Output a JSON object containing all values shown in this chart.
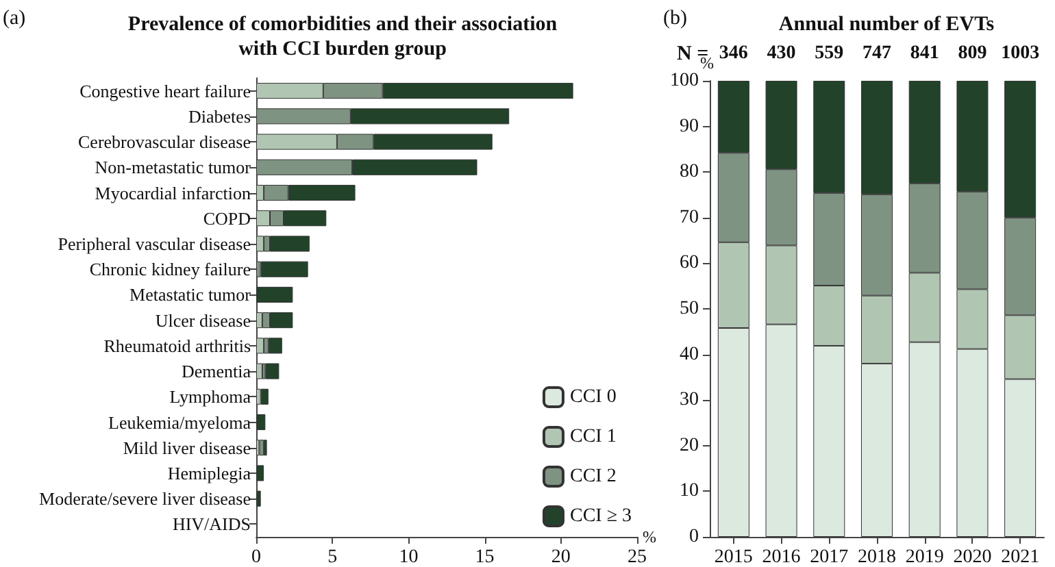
{
  "chart_data": [
    {
      "type": "bar",
      "orientation": "horizontal",
      "stacked": true,
      "title": "Prevalence of comorbidities and their association\nwith CCI burden group",
      "xlabel": "%",
      "annotations": [
        "(a)"
      ],
      "categories": [
        "Congestive heart failure",
        "Diabetes",
        "Cerebrovascular disease",
        "Non-metastatic tumor",
        "Myocardial infarction",
        "COPD",
        "Peripheral vascular disease",
        "Chronic kidney failure",
        "Metastatic tumor",
        "Ulcer disease",
        "Rheumatoid arthritis",
        "Dementia",
        "Lymphoma",
        "Leukemia/myeloma",
        "Mild liver disease",
        "Hemiplegia",
        "Moderate/severe liver disease",
        "HIV/AIDS"
      ],
      "series": [
        {
          "name": "CCI 0",
          "color": "#dce9df",
          "values": [
            0,
            0,
            0,
            0,
            0,
            0,
            0,
            0,
            0,
            0,
            0,
            0,
            0,
            0,
            0,
            0,
            0,
            0
          ]
        },
        {
          "name": "CCI 1",
          "color": "#b1c5b3",
          "values": [
            4.4,
            0,
            5.3,
            0,
            0.5,
            0.9,
            0.5,
            0,
            0,
            0.4,
            0.5,
            0.4,
            0.3,
            null,
            0.2,
            0,
            0,
            0
          ]
        },
        {
          "name": "CCI 2",
          "color": "#7f9383",
          "values": [
            3.9,
            6.2,
            2.4,
            6.3,
            1.6,
            0.9,
            0.4,
            0.3,
            0,
            0.5,
            0.3,
            0.2,
            0,
            0,
            0.3,
            0,
            0,
            0
          ]
        },
        {
          "name": "CCI ≥ 3",
          "color": "#22432a",
          "values": [
            12.5,
            10.4,
            7.8,
            8.2,
            4.4,
            2.8,
            2.6,
            3.1,
            2.4,
            1.5,
            0.9,
            0.9,
            0.5,
            0.6,
            0.2,
            0.5,
            0.3,
            null
          ]
        }
      ],
      "xlim": [
        0,
        25
      ],
      "xticks": [
        0,
        5,
        10,
        15,
        20,
        25
      ],
      "legend": "bottom right"
    },
    {
      "type": "bar",
      "stacked": true,
      "title": "Annual number of EVTs",
      "ylabel": "%",
      "annotations": [
        "(b)",
        "N =",
        "346",
        "430",
        "559",
        "747",
        "841",
        "809",
        "1003"
      ],
      "categories": [
        "2015",
        "2016",
        "2017",
        "2018",
        "2019",
        "2020",
        "2021"
      ],
      "series": [
        {
          "color": "#dce9df",
          "values": [
            45.8,
            46.6,
            41.9,
            38.0,
            42.7,
            41.2,
            34.6
          ]
        },
        {
          "color": "#b1c5b3",
          "values": [
            18.8,
            17.3,
            13.2,
            14.9,
            15.2,
            13.1,
            14.0
          ]
        },
        {
          "color": "#7f9383",
          "values": [
            19.6,
            16.7,
            20.3,
            22.2,
            19.6,
            21.4,
            21.4
          ]
        },
        {
          "color": "#22432a",
          "values": [
            15.8,
            19.4,
            24.6,
            24.9,
            22.5,
            24.3,
            30.0
          ]
        }
      ],
      "ylim": [
        0,
        100
      ],
      "yticks": [
        0,
        10,
        20,
        30,
        40,
        50,
        60,
        70,
        80,
        90,
        100
      ]
    }
  ]
}
